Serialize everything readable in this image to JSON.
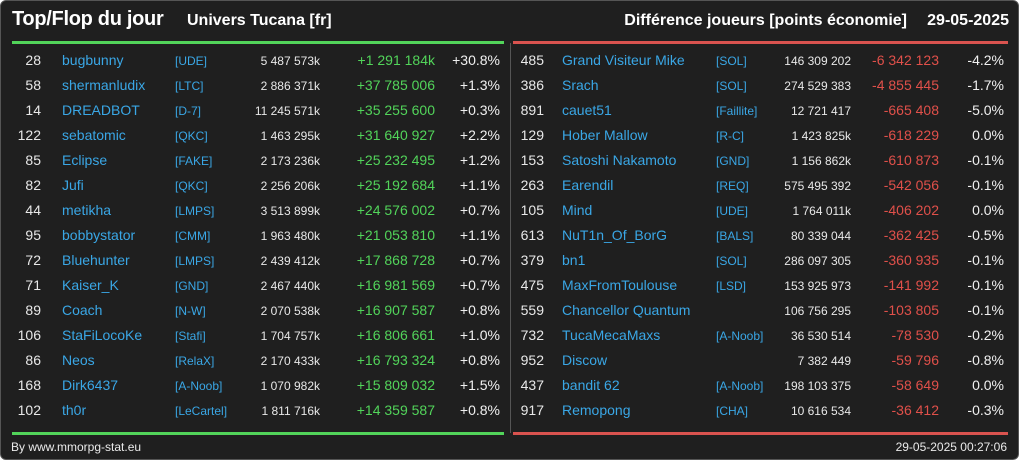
{
  "header": {
    "title": "Top/Flop du jour",
    "universe": "Univers Tucana [fr]",
    "subtitle": "Différence joueurs [points économie]",
    "date": "29-05-2025"
  },
  "colors": {
    "gain": "#52d45a",
    "loss": "#e0504a",
    "link": "#3aa7e6",
    "background": "#1f1f1f"
  },
  "top": [
    {
      "rank": "28",
      "name": "bugbunny",
      "alliance": "[UDE]",
      "points": "5 487 573k",
      "diff": "+1 291 184k",
      "pct": "+30.8%"
    },
    {
      "rank": "58",
      "name": "shermanludix",
      "alliance": "[LTC]",
      "points": "2 886 371k",
      "diff": "+37 785 006",
      "pct": "+1.3%"
    },
    {
      "rank": "14",
      "name": "DREADBOT",
      "alliance": "[D-7]",
      "points": "11 245 571k",
      "diff": "+35 255 600",
      "pct": "+0.3%"
    },
    {
      "rank": "122",
      "name": "sebatomic",
      "alliance": "[QKC]",
      "points": "1 463 295k",
      "diff": "+31 640 927",
      "pct": "+2.2%"
    },
    {
      "rank": "85",
      "name": "Eclipse",
      "alliance": "[FAKE]",
      "points": "2 173 236k",
      "diff": "+25 232 495",
      "pct": "+1.2%"
    },
    {
      "rank": "82",
      "name": "Jufi",
      "alliance": "[QKC]",
      "points": "2 256 206k",
      "diff": "+25 192 684",
      "pct": "+1.1%"
    },
    {
      "rank": "44",
      "name": "metikha",
      "alliance": "[LMPS]",
      "points": "3 513 899k",
      "diff": "+24 576 002",
      "pct": "+0.7%"
    },
    {
      "rank": "95",
      "name": "bobbystator",
      "alliance": "[CMM]",
      "points": "1 963 480k",
      "diff": "+21 053 810",
      "pct": "+1.1%"
    },
    {
      "rank": "72",
      "name": "Bluehunter",
      "alliance": "[LMPS]",
      "points": "2 439 412k",
      "diff": "+17 868 728",
      "pct": "+0.7%"
    },
    {
      "rank": "71",
      "name": "Kaiser_K",
      "alliance": "[GND]",
      "points": "2 467 440k",
      "diff": "+16 981 569",
      "pct": "+0.7%"
    },
    {
      "rank": "89",
      "name": "Coach",
      "alliance": "[N-W]",
      "points": "2 070 538k",
      "diff": "+16 907 587",
      "pct": "+0.8%"
    },
    {
      "rank": "106",
      "name": "StaFiLocoKe",
      "alliance": "[Stafi]",
      "points": "1 704 757k",
      "diff": "+16 806 661",
      "pct": "+1.0%"
    },
    {
      "rank": "86",
      "name": "Neos",
      "alliance": "[RelaX]",
      "points": "2 170 433k",
      "diff": "+16 793 324",
      "pct": "+0.8%"
    },
    {
      "rank": "168",
      "name": "Dirk6437",
      "alliance": "[A-Noob]",
      "points": "1 070 982k",
      "diff": "+15 809 032",
      "pct": "+1.5%"
    },
    {
      "rank": "102",
      "name": "th0r",
      "alliance": "[LeCartel]",
      "points": "1 811 716k",
      "diff": "+14 359 587",
      "pct": "+0.8%"
    }
  ],
  "flop": [
    {
      "rank": "485",
      "name": "Grand Visiteur Mike",
      "alliance": "[SOL]",
      "points": "146 309 202",
      "diff": "-6 342 123",
      "pct": "-4.2%"
    },
    {
      "rank": "386",
      "name": "Srach",
      "alliance": "[SOL]",
      "points": "274 529 383",
      "diff": "-4 855 445",
      "pct": "-1.7%"
    },
    {
      "rank": "891",
      "name": "cauet51",
      "alliance": "[Faillite]",
      "points": "12 721 417",
      "diff": "-665 408",
      "pct": "-5.0%"
    },
    {
      "rank": "129",
      "name": "Hober Mallow",
      "alliance": "[R-C]",
      "points": "1 423 825k",
      "diff": "-618 229",
      "pct": "0.0%"
    },
    {
      "rank": "153",
      "name": "Satoshi Nakamoto",
      "alliance": "[GND]",
      "points": "1 156 862k",
      "diff": "-610 873",
      "pct": "-0.1%"
    },
    {
      "rank": "263",
      "name": "Earendil",
      "alliance": "[REQ]",
      "points": "575 495 392",
      "diff": "-542 056",
      "pct": "-0.1%"
    },
    {
      "rank": "105",
      "name": "Mind",
      "alliance": "[UDE]",
      "points": "1 764 011k",
      "diff": "-406 202",
      "pct": "0.0%"
    },
    {
      "rank": "613",
      "name": "NuT1n_Of_BorG",
      "alliance": "[BALS]",
      "points": "80 339 044",
      "diff": "-362 425",
      "pct": "-0.5%"
    },
    {
      "rank": "379",
      "name": "bn1",
      "alliance": "[SOL]",
      "points": "286 097 305",
      "diff": "-360 935",
      "pct": "-0.1%"
    },
    {
      "rank": "475",
      "name": "MaxFromToulouse",
      "alliance": "[LSD]",
      "points": "153 925 973",
      "diff": "-141 992",
      "pct": "-0.1%"
    },
    {
      "rank": "559",
      "name": "Chancellor Quantum",
      "alliance": "",
      "points": "106 756 295",
      "diff": "-103 805",
      "pct": "-0.1%"
    },
    {
      "rank": "732",
      "name": "TucaMecaMaxs",
      "alliance": "[A-Noob]",
      "points": "36 530 514",
      "diff": "-78 530",
      "pct": "-0.2%"
    },
    {
      "rank": "952",
      "name": "Discow",
      "alliance": "",
      "points": "7 382 449",
      "diff": "-59 796",
      "pct": "-0.8%"
    },
    {
      "rank": "437",
      "name": "bandit 62",
      "alliance": "[A-Noob]",
      "points": "198 103 375",
      "diff": "-58 649",
      "pct": "0.0%"
    },
    {
      "rank": "917",
      "name": "Remopong",
      "alliance": "[CHA]",
      "points": "10 616 534",
      "diff": "-36 412",
      "pct": "-0.3%"
    }
  ],
  "footer": {
    "credit": "By www.mmorpg-stat.eu",
    "timestamp": "29-05-2025 00:27:06"
  }
}
